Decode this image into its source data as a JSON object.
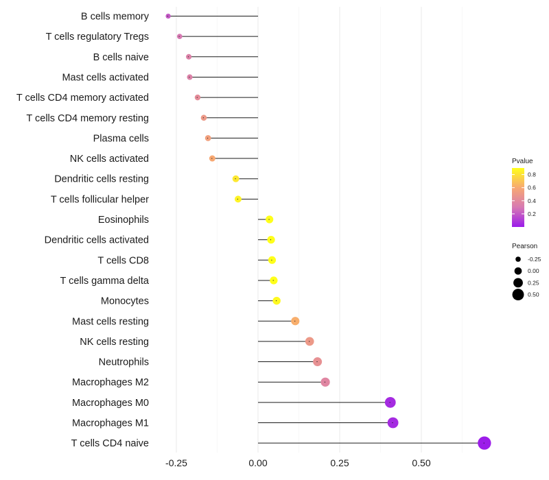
{
  "chart_data": {
    "type": "lollipop",
    "title": "",
    "xlabel": "",
    "ylabel": "",
    "xlim": [
      -0.31,
      0.72
    ],
    "x_ticks": [
      -0.25,
      0.0,
      0.25,
      0.5
    ],
    "x_tick_labels": [
      "-0.25",
      "0.00",
      "0.25",
      "0.50"
    ],
    "categories": [
      "B cells memory",
      "T cells regulatory  Tregs",
      "B cells naive",
      "Mast cells activated",
      "T cells CD4 memory activated",
      "T cells CD4 memory resting",
      "Plasma cells",
      "NK cells activated",
      "Dendritic cells resting",
      "T cells follicular helper",
      "Eosinophils",
      "Dendritic cells activated",
      "T cells CD8",
      "T cells gamma delta",
      "Monocytes",
      "Mast cells resting",
      "NK cells resting",
      "Neutrophils",
      "Macrophages M2",
      "Macrophages M0",
      "Macrophages M1",
      "T cells CD4 naive"
    ],
    "pearson": [
      -0.275,
      -0.24,
      -0.212,
      -0.209,
      -0.185,
      -0.166,
      -0.153,
      -0.14,
      -0.068,
      -0.061,
      0.035,
      0.04,
      0.043,
      0.048,
      0.057,
      0.114,
      0.158,
      0.182,
      0.206,
      0.405,
      0.413,
      0.693
    ],
    "pvalue": [
      0.2,
      0.3,
      0.35,
      0.35,
      0.42,
      0.5,
      0.55,
      0.6,
      0.82,
      0.86,
      0.95,
      0.93,
      0.93,
      0.9,
      0.88,
      0.62,
      0.5,
      0.45,
      0.38,
      0.05,
      0.05,
      0.005
    ],
    "legend": {
      "color": {
        "title": "Pvalue",
        "ticks": [
          "0.8",
          "0.6",
          "0.4",
          "0.2"
        ],
        "tick_values": [
          0.8,
          0.6,
          0.4,
          0.2
        ],
        "range": [
          0.0,
          0.9
        ],
        "colors": [
          "#9b1bea",
          "#d77ab3",
          "#f7a872",
          "#ffff1a"
        ]
      },
      "size": {
        "title": "Pearson",
        "labels": [
          "-0.25",
          "0.00",
          "0.25",
          "0.50"
        ],
        "values": [
          -0.25,
          0.0,
          0.25,
          0.5
        ]
      }
    }
  }
}
